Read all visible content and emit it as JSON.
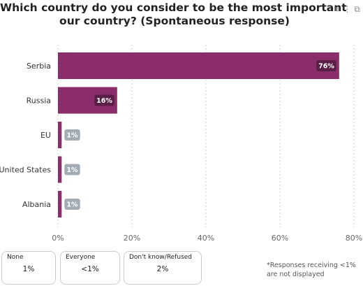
{
  "title_line1": "Which country do you consider to be the most important thr",
  "title_line2": "our country? (Spontaneous response)",
  "icons": [
    "filter-icon",
    "more-icon",
    "expand-icon"
  ],
  "chart_data": {
    "type": "bar",
    "orientation": "horizontal",
    "categories": [
      "Serbia",
      "Russia",
      "EU",
      "United States",
      "Albania"
    ],
    "values": [
      76,
      16,
      1,
      1,
      1
    ],
    "value_labels": [
      "76%",
      "16%",
      "1%",
      "1%",
      "1%"
    ],
    "xlim": [
      0,
      80
    ],
    "xticks": [
      0,
      20,
      40,
      60,
      80
    ],
    "xtick_labels": [
      "0%",
      "20%",
      "40%",
      "60%",
      "80%"
    ],
    "grid": true,
    "bar_color": "#8b2d6b",
    "label_inside_color": "#5a1f47",
    "label_outside_color": "#a3acb5"
  },
  "boxes": [
    {
      "label": "None",
      "value": "1%"
    },
    {
      "label": "Everyone",
      "value": "<1%"
    },
    {
      "label": "Don't know/Refused",
      "value": "2%"
    }
  ],
  "footnote": "*Responses receiving <1% are not displayed"
}
